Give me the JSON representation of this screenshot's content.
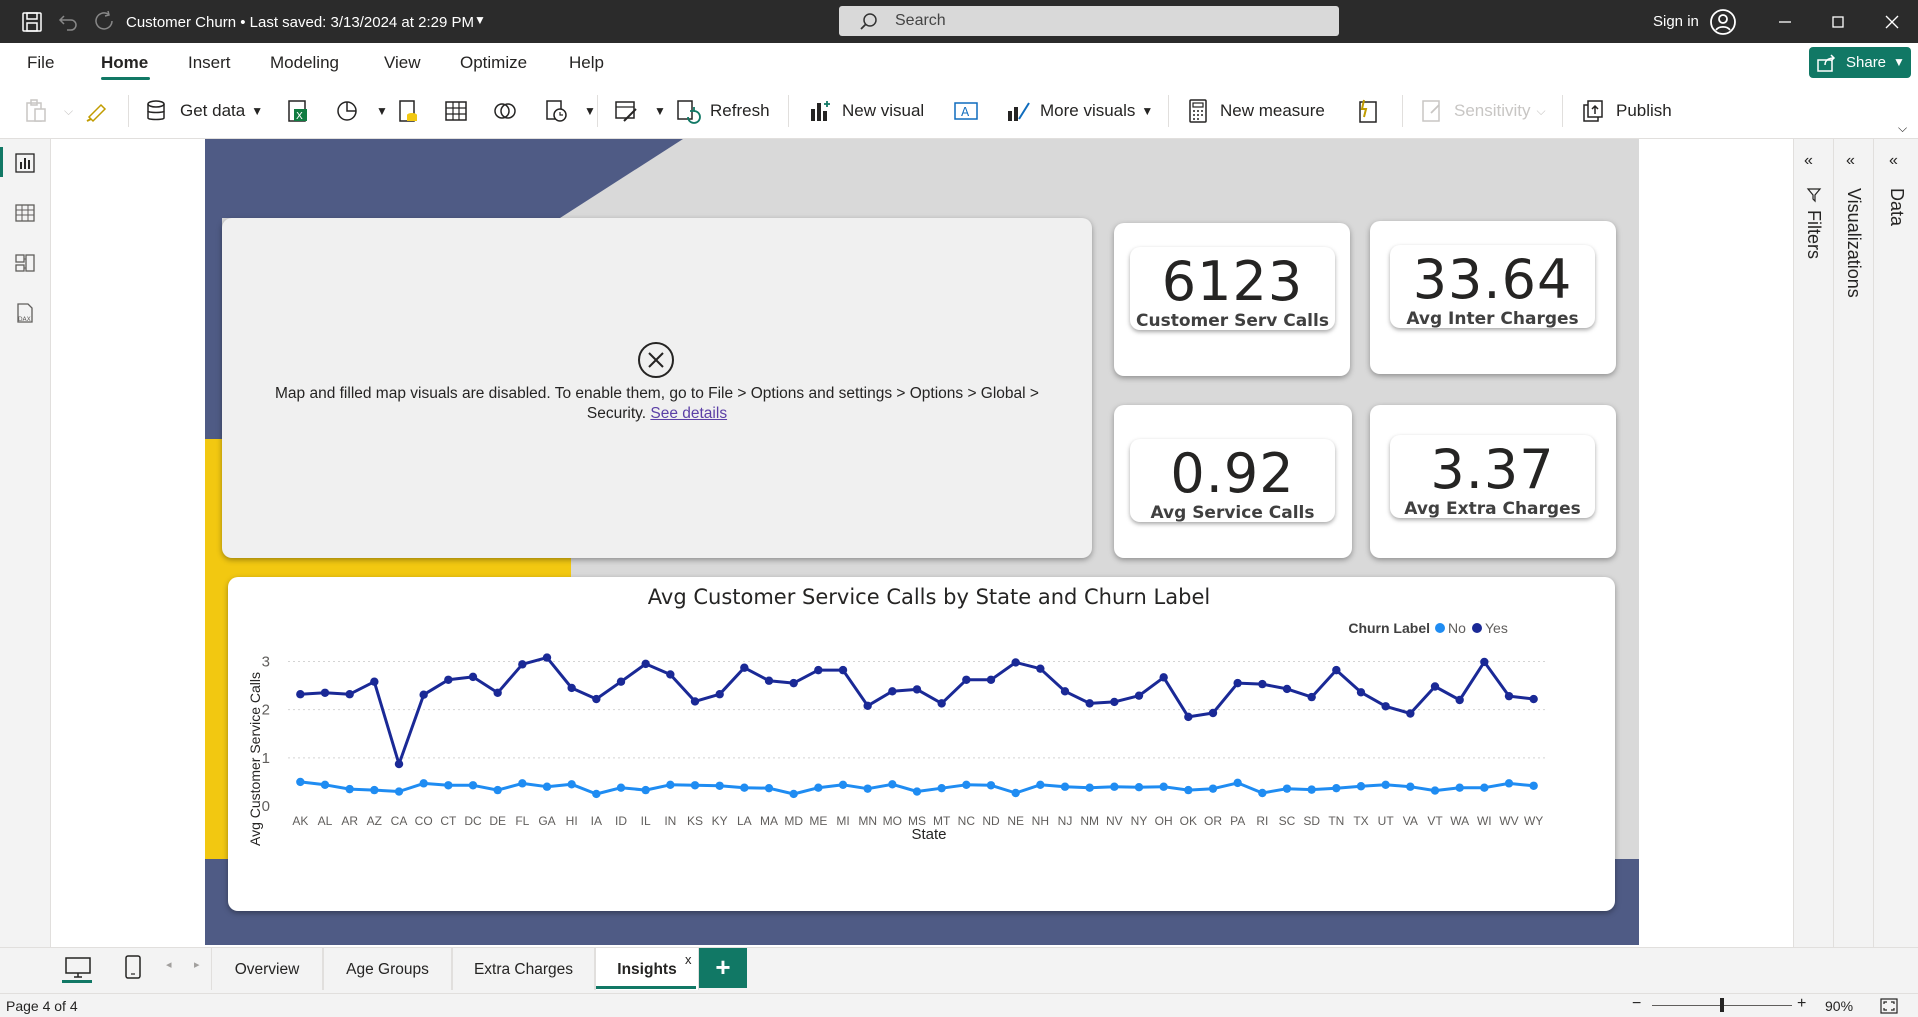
{
  "window": {
    "title": "Customer Churn",
    "saved": "Last saved: 3/13/2024 at 2:29 PM",
    "search_placeholder": "Search",
    "sign_in": "Sign in"
  },
  "menu": {
    "items": [
      "File",
      "Home",
      "Insert",
      "Modeling",
      "View",
      "Optimize",
      "Help"
    ],
    "active": "Home",
    "share_label": "Share"
  },
  "ribbon": {
    "get_data": "Get data",
    "refresh": "Refresh",
    "new_visual": "New visual",
    "more_visuals": "More visuals",
    "new_measure": "New measure",
    "sensitivity": "Sensitivity",
    "publish": "Publish"
  },
  "panes": {
    "filters": "Filters",
    "visualizations": "Visualizations",
    "data": "Data"
  },
  "map_visual": {
    "message": "Map and filled map visuals are disabled. To enable them, go to File > Options and settings > Options > Global > Security.",
    "link": "See details"
  },
  "kpis": [
    {
      "value": "6123",
      "label": "Customer Serv Calls"
    },
    {
      "value": "33.64",
      "label": "Avg Inter Charges"
    },
    {
      "value": "0.92",
      "label": "Avg Service Calls"
    },
    {
      "value": "3.37",
      "label": "Avg Extra Charges"
    }
  ],
  "colors": {
    "accent": "#117865",
    "navy_shape": "#4f5b85",
    "yellow_shape": "#f2c811",
    "series_no": "#1f8cf2",
    "series_yes": "#1a2996"
  },
  "chart_data": {
    "type": "line",
    "title": "Avg Customer Service Calls by State and Churn Label",
    "xlabel": "State",
    "ylabel": "Avg Customer Service Calls",
    "ylim": [
      0,
      3.3
    ],
    "yticks": [
      0,
      1,
      2,
      3
    ],
    "grid": true,
    "legend": {
      "title": "Churn Label",
      "placement": "top-right"
    },
    "categories": [
      "AK",
      "AL",
      "AR",
      "AZ",
      "CA",
      "CO",
      "CT",
      "DC",
      "DE",
      "FL",
      "GA",
      "HI",
      "IA",
      "ID",
      "IL",
      "IN",
      "KS",
      "KY",
      "LA",
      "MA",
      "MD",
      "ME",
      "MI",
      "MN",
      "MO",
      "MS",
      "MT",
      "NC",
      "ND",
      "NE",
      "NH",
      "NJ",
      "NM",
      "NV",
      "NY",
      "OH",
      "OK",
      "OR",
      "PA",
      "RI",
      "SC",
      "SD",
      "TN",
      "TX",
      "UT",
      "VA",
      "VT",
      "WA",
      "WI",
      "WV",
      "WY"
    ],
    "series": [
      {
        "name": "No",
        "color": "#1f8cf2",
        "values": [
          0.5,
          0.44,
          0.35,
          0.33,
          0.3,
          0.47,
          0.43,
          0.43,
          0.33,
          0.47,
          0.4,
          0.45,
          0.25,
          0.38,
          0.33,
          0.44,
          0.43,
          0.42,
          0.38,
          0.37,
          0.25,
          0.38,
          0.44,
          0.36,
          0.45,
          0.3,
          0.37,
          0.44,
          0.43,
          0.27,
          0.44,
          0.4,
          0.38,
          0.4,
          0.39,
          0.4,
          0.33,
          0.36,
          0.48,
          0.27,
          0.36,
          0.34,
          0.37,
          0.41,
          0.44,
          0.4,
          0.32,
          0.38,
          0.38,
          0.47,
          0.42
        ]
      },
      {
        "name": "Yes",
        "color": "#1a2996",
        "values": [
          2.32,
          2.35,
          2.32,
          2.58,
          0.87,
          2.31,
          2.62,
          2.68,
          2.35,
          2.94,
          3.08,
          2.45,
          2.22,
          2.58,
          2.95,
          2.73,
          2.17,
          2.32,
          2.87,
          2.6,
          2.55,
          2.82,
          2.82,
          2.08,
          2.38,
          2.42,
          2.13,
          2.62,
          2.62,
          2.98,
          2.85,
          2.38,
          2.13,
          2.16,
          2.29,
          2.67,
          1.85,
          1.93,
          2.55,
          2.53,
          2.43,
          2.26,
          2.82,
          2.36,
          2.07,
          1.92,
          2.48,
          2.2,
          2.99,
          2.28,
          2.22
        ]
      }
    ]
  },
  "tabs": {
    "pages": [
      "Overview",
      "Age Groups",
      "Extra Charges",
      "Insights"
    ],
    "active": "Insights",
    "close": "x",
    "add": "+"
  },
  "status": {
    "page_indicator": "Page 4 of 4",
    "zoom_level": "90%",
    "zoom_fraction": 0.5
  }
}
